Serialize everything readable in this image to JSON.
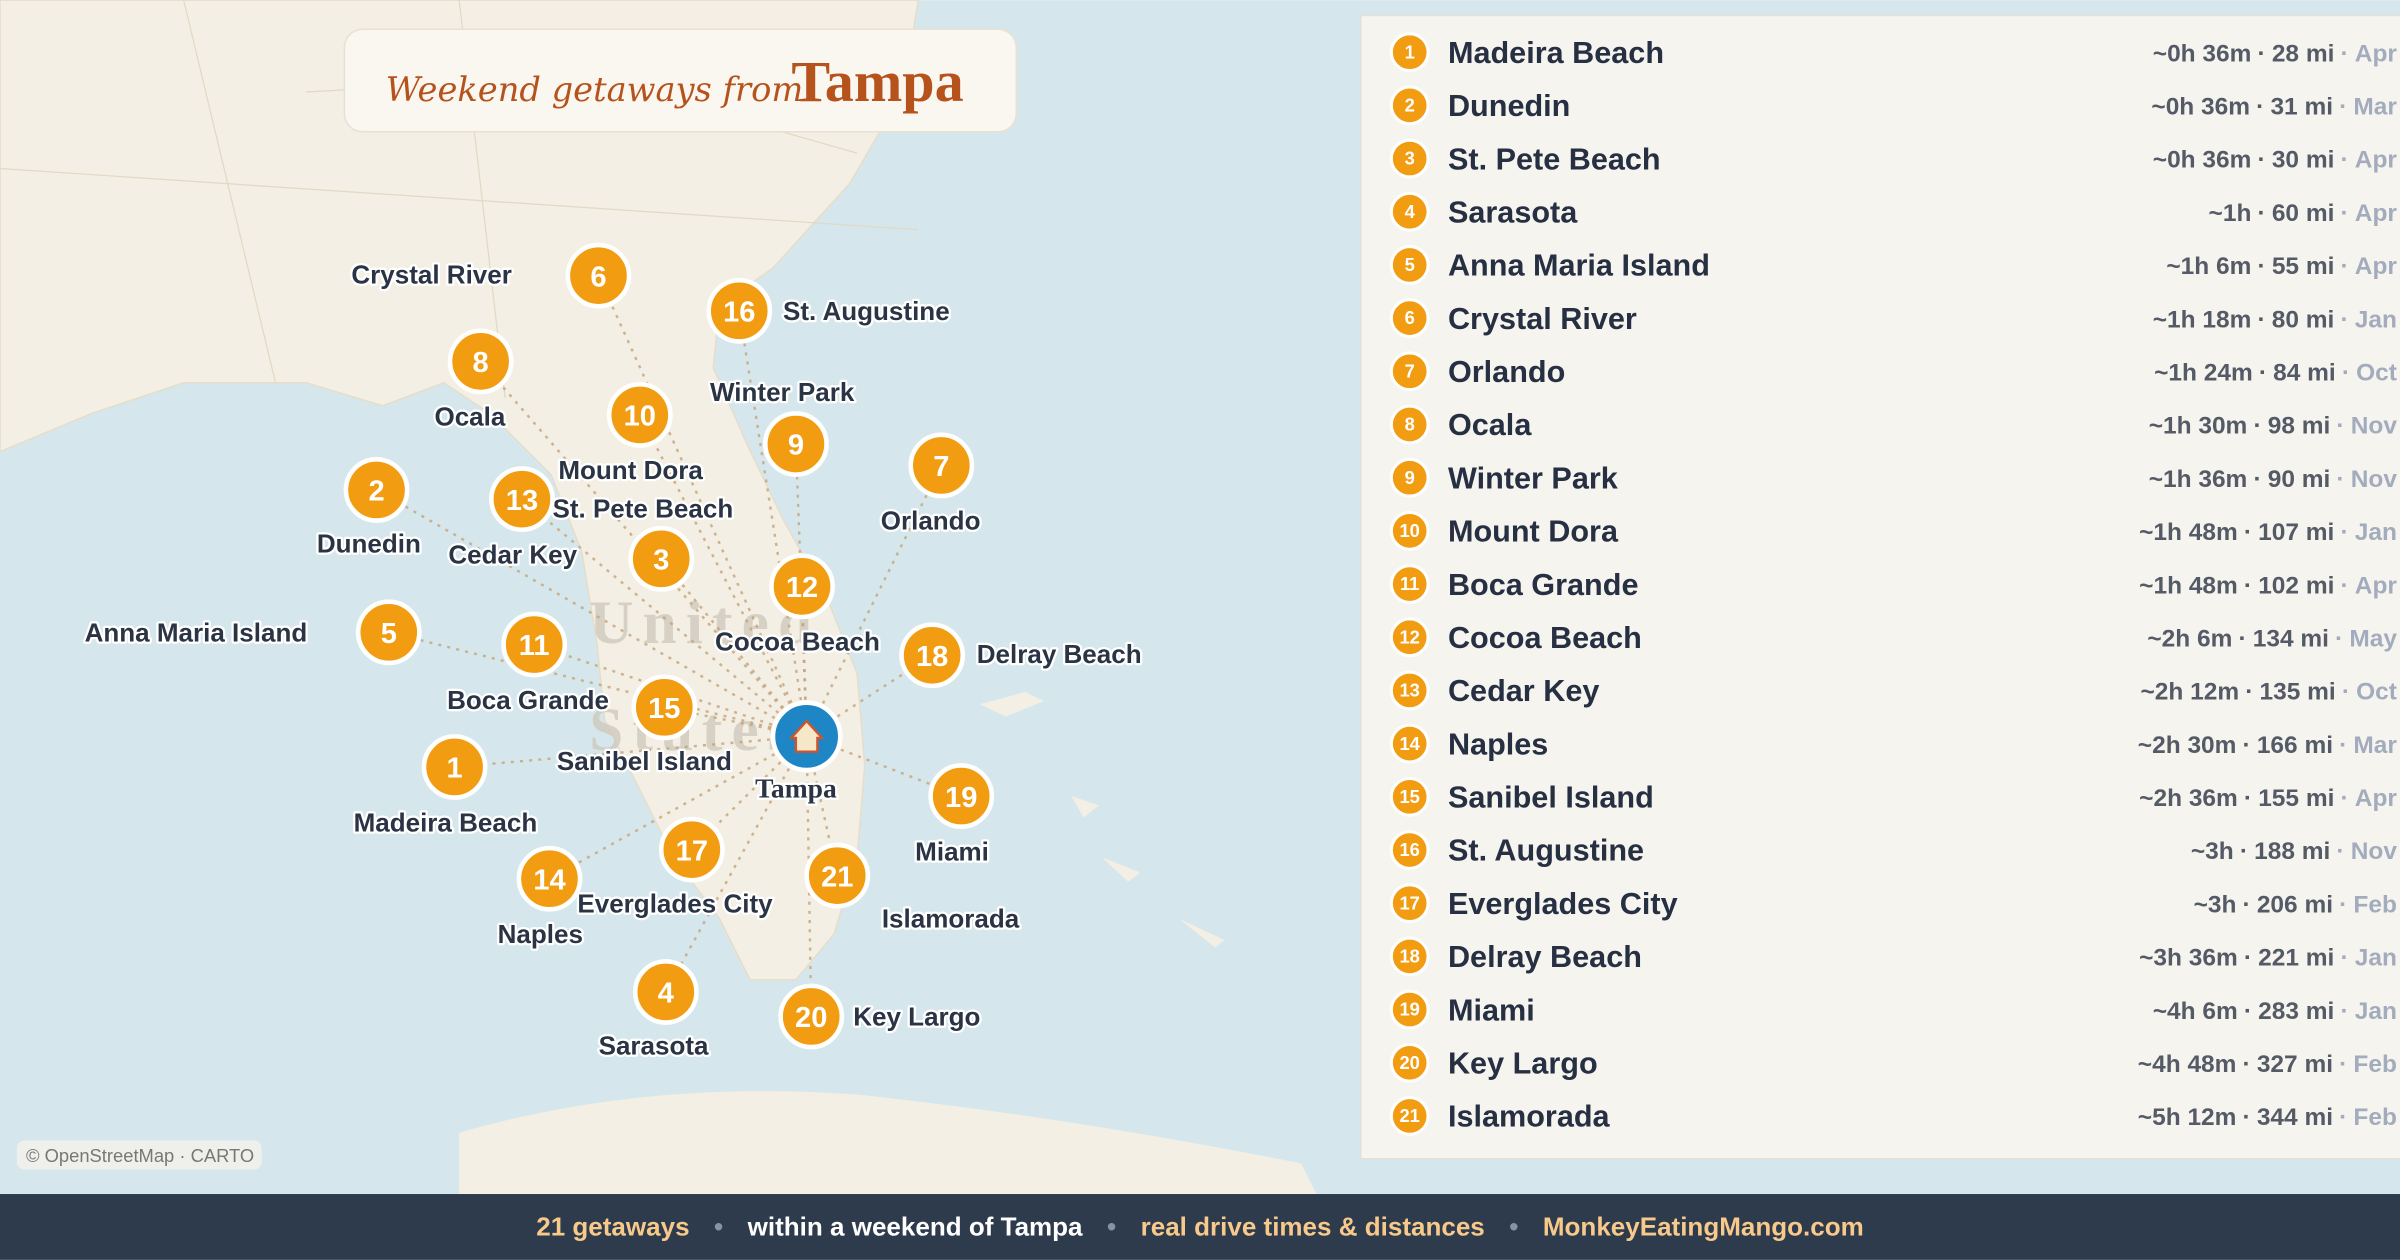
{
  "title": {
    "prefix": "Weekend getaways from",
    "city": "Tampa"
  },
  "home_label": "Tampa",
  "separator": "·",
  "destinations": [
    {
      "number": 1,
      "name": "Madeira Beach",
      "time": "~0h 36m",
      "distance": "28 mi",
      "month": "Apr"
    },
    {
      "number": 2,
      "name": "Dunedin",
      "time": "~0h 36m",
      "distance": "31 mi",
      "month": "Mar"
    },
    {
      "number": 3,
      "name": "St. Pete Beach",
      "time": "~0h 36m",
      "distance": "30 mi",
      "month": "Apr"
    },
    {
      "number": 4,
      "name": "Sarasota",
      "time": "~1h",
      "distance": "60 mi",
      "month": "Apr"
    },
    {
      "number": 5,
      "name": "Anna Maria Island",
      "time": "~1h 6m",
      "distance": "55 mi",
      "month": "Apr"
    },
    {
      "number": 6,
      "name": "Crystal River",
      "time": "~1h 18m",
      "distance": "80 mi",
      "month": "Jan"
    },
    {
      "number": 7,
      "name": "Orlando",
      "time": "~1h 24m",
      "distance": "84 mi",
      "month": "Oct"
    },
    {
      "number": 8,
      "name": "Ocala",
      "time": "~1h 30m",
      "distance": "98 mi",
      "month": "Nov"
    },
    {
      "number": 9,
      "name": "Winter Park",
      "time": "~1h 36m",
      "distance": "90 mi",
      "month": "Nov"
    },
    {
      "number": 10,
      "name": "Mount Dora",
      "time": "~1h 48m",
      "distance": "107 mi",
      "month": "Jan"
    },
    {
      "number": 11,
      "name": "Boca Grande",
      "time": "~1h 48m",
      "distance": "102 mi",
      "month": "Apr"
    },
    {
      "number": 12,
      "name": "Cocoa Beach",
      "time": "~2h 6m",
      "distance": "134 mi",
      "month": "May"
    },
    {
      "number": 13,
      "name": "Cedar Key",
      "time": "~2h 12m",
      "distance": "135 mi",
      "month": "Oct"
    },
    {
      "number": 14,
      "name": "Naples",
      "time": "~2h 30m",
      "distance": "166 mi",
      "month": "Mar"
    },
    {
      "number": 15,
      "name": "Sanibel Island",
      "time": "~2h 36m",
      "distance": "155 mi",
      "month": "Apr"
    },
    {
      "number": 16,
      "name": "St. Augustine",
      "time": "~3h",
      "distance": "188 mi",
      "month": "Nov"
    },
    {
      "number": 17,
      "name": "Everglades City",
      "time": "~3h",
      "distance": "206 mi",
      "month": "Feb"
    },
    {
      "number": 18,
      "name": "Delray Beach",
      "time": "~3h 36m",
      "distance": "221 mi",
      "month": "Jan"
    },
    {
      "number": 19,
      "name": "Miami",
      "time": "~4h 6m",
      "distance": "283 mi",
      "month": "Jan"
    },
    {
      "number": 20,
      "name": "Key Largo",
      "time": "~4h 48m",
      "distance": "327 mi",
      "month": "Feb"
    },
    {
      "number": 21,
      "name": "Islamorada",
      "time": "~5h 12m",
      "distance": "344 mi",
      "month": "Feb"
    }
  ],
  "map_labels": [
    "United",
    "States"
  ],
  "attribution": "© OpenStreetMap · CARTO",
  "footer": {
    "items": [
      "21 getaways",
      "within a weekend of Tampa",
      "real drive times & distances",
      "MonkeyEatingMango.com"
    ],
    "separator": "•"
  }
}
